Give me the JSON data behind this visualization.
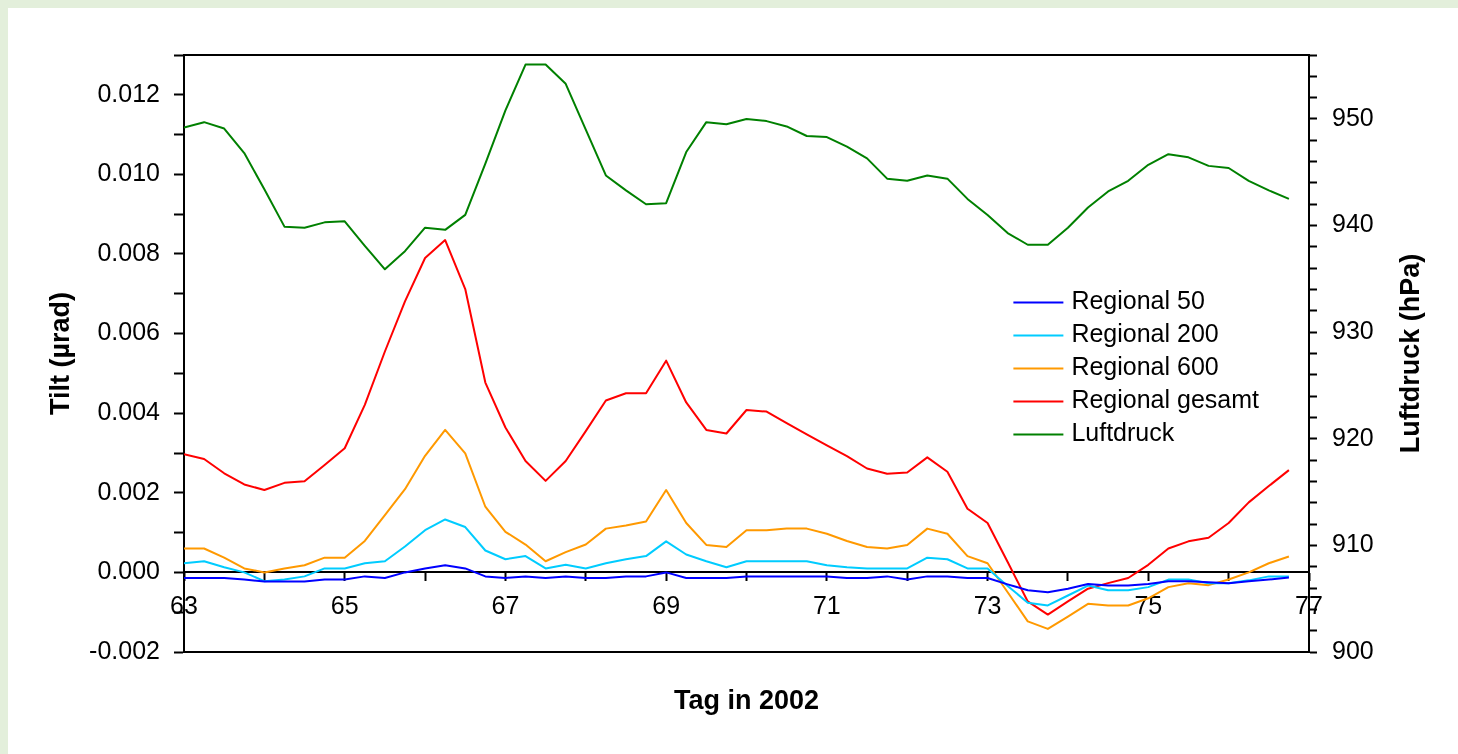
{
  "chart_data": {
    "type": "line",
    "xlabel": "Tag in 2002",
    "ylabel": "Tilt (µrad)",
    "y2label": "Luftdruck (hPa)",
    "x": [
      63,
      63.25,
      63.5,
      63.75,
      64,
      64.25,
      64.5,
      64.75,
      65,
      65.25,
      65.5,
      65.75,
      66,
      66.25,
      66.5,
      66.75,
      67,
      67.25,
      67.5,
      67.75,
      68,
      68.25,
      68.5,
      68.75,
      69,
      69.25,
      69.5,
      69.75,
      70,
      70.25,
      70.5,
      70.75,
      71,
      71.25,
      71.5,
      71.75,
      72,
      72.25,
      72.5,
      72.75,
      73,
      73.25,
      73.5,
      73.75,
      74,
      74.25,
      74.5,
      74.75,
      75,
      75.25,
      75.5,
      75.75,
      76,
      76.25,
      76.5,
      76.75
    ],
    "xlim": [
      63,
      77
    ],
    "xticks": [
      63,
      {
        "value": 64,
        "label": null
      },
      65,
      {
        "value": 66,
        "label": null
      },
      67,
      {
        "value": 68,
        "label": null
      },
      69,
      {
        "value": 70,
        "label": null
      },
      71,
      {
        "value": 72,
        "label": null
      },
      73,
      {
        "value": 74,
        "label": null
      },
      75,
      {
        "value": 76,
        "label": null
      },
      77
    ],
    "ylim": [
      -0.002,
      0.013
    ],
    "yticks": [
      -0.002,
      {
        "value": -0.001,
        "label": null
      },
      {
        "value": 0,
        "label": "0.000"
      },
      {
        "value": 0.001,
        "label": null
      },
      0.002,
      {
        "value": 0.003,
        "label": null
      },
      0.004,
      {
        "value": 0.005,
        "label": null
      },
      0.006,
      {
        "value": 0.007,
        "label": null
      },
      0.008,
      {
        "value": 0.009,
        "label": null
      },
      {
        "value": 0.01,
        "label": "0.010"
      },
      {
        "value": 0.011,
        "label": null
      },
      0.012,
      {
        "value": 0.013,
        "label": null
      }
    ],
    "y2lim": [
      900,
      956
    ],
    "y2ticks": [
      900,
      {
        "value": 902,
        "label": null
      },
      {
        "value": 904,
        "label": null
      },
      {
        "value": 906,
        "label": null
      },
      {
        "value": 908,
        "label": null
      },
      910,
      {
        "value": 912,
        "label": null
      },
      {
        "value": 914,
        "label": null
      },
      {
        "value": 916,
        "label": null
      },
      {
        "value": 918,
        "label": null
      },
      920,
      {
        "value": 922,
        "label": null
      },
      {
        "value": 924,
        "label": null
      },
      {
        "value": 926,
        "label": null
      },
      {
        "value": 928,
        "label": null
      },
      930,
      {
        "value": 932,
        "label": null
      },
      {
        "value": 934,
        "label": null
      },
      {
        "value": 936,
        "label": null
      },
      {
        "value": 938,
        "label": null
      },
      940,
      {
        "value": 942,
        "label": null
      },
      {
        "value": 944,
        "label": null
      },
      {
        "value": 946,
        "label": null
      },
      {
        "value": 948,
        "label": null
      },
      950,
      {
        "value": 952,
        "label": null
      },
      {
        "value": 954,
        "label": null
      },
      {
        "value": 956,
        "label": null
      }
    ],
    "legend": "right",
    "series": [
      {
        "name": "Regional 50",
        "color": "#0000ff",
        "values": [
          -0.00014,
          -0.00014,
          -0.00014,
          -0.00018,
          -0.00023,
          -0.00023,
          -0.00023,
          -0.00018,
          -0.00018,
          -0.0001,
          -0.00014,
          0,
          0.0001,
          0.00018,
          0.0001,
          -0.0001,
          -0.00014,
          -0.0001,
          -0.00014,
          -0.0001,
          -0.00014,
          -0.00014,
          -0.0001,
          -0.0001,
          0,
          -0.00014,
          -0.00014,
          -0.00014,
          -0.0001,
          -0.0001,
          -0.0001,
          -0.0001,
          -0.0001,
          -0.00014,
          -0.00014,
          -0.0001,
          -0.00018,
          -0.0001,
          -0.0001,
          -0.00014,
          -0.00014,
          -0.0003,
          -0.00045,
          -0.0005,
          -0.00041,
          -0.00029,
          -0.00033,
          -0.00033,
          -0.00029,
          -0.00022,
          -0.00022,
          -0.00025,
          -0.00027,
          -0.00022,
          -0.00018,
          -0.00013
        ]
      },
      {
        "name": "Regional 200",
        "color": "#00ccff",
        "values": [
          0.00023,
          0.00028,
          0.00013,
          0,
          -0.00022,
          -0.00018,
          -0.0001,
          0.0001,
          0.0001,
          0.00023,
          0.00028,
          0.00065,
          0.00106,
          0.00133,
          0.00114,
          0.00055,
          0.00033,
          0.00041,
          0.0001,
          0.00019,
          0.0001,
          0.00023,
          0.00033,
          0.00041,
          0.00078,
          0.00045,
          0.00028,
          0.00013,
          0.00028,
          0.00028,
          0.00028,
          0.00028,
          0.00018,
          0.00013,
          0.0001,
          0.0001,
          0.0001,
          0.00037,
          0.00033,
          0.0001,
          0.0001,
          -0.00034,
          -0.00076,
          -0.00083,
          -0.00058,
          -0.00033,
          -0.00045,
          -0.00045,
          -0.00037,
          -0.00018,
          -0.00018,
          -0.00027,
          -0.00027,
          -0.0002,
          -0.0001,
          -0.0001
        ]
      },
      {
        "name": "Regional 600",
        "color": "#ff9900",
        "values": [
          0.0006,
          0.0006,
          0.00037,
          0.0001,
          0,
          0.0001,
          0.00018,
          0.00037,
          0.00037,
          0.00079,
          0.00144,
          0.00209,
          0.00293,
          0.00358,
          0.00299,
          0.00165,
          0.00102,
          0.0007,
          0.00028,
          0.00051,
          0.0007,
          0.0011,
          0.00118,
          0.00128,
          0.00207,
          0.00124,
          0.00069,
          0.00064,
          0.00106,
          0.00106,
          0.0011,
          0.0011,
          0.00097,
          0.00079,
          0.00064,
          0.0006,
          0.00069,
          0.0011,
          0.00097,
          0.00041,
          0.00023,
          -0.0005,
          -0.00123,
          -0.00142,
          -0.00111,
          -0.00079,
          -0.00083,
          -0.00083,
          -0.00065,
          -0.00037,
          -0.00027,
          -0.00032,
          -0.00018,
          0,
          0.00023,
          0.0004
        ]
      },
      {
        "name": "Regional gesamt",
        "color": "#ff0000",
        "values": [
          0.00297,
          0.00285,
          0.00249,
          0.00221,
          0.00207,
          0.00225,
          0.00229,
          0.0027,
          0.00312,
          0.00421,
          0.00555,
          0.00681,
          0.0079,
          0.00835,
          0.00712,
          0.00477,
          0.00364,
          0.0028,
          0.0023,
          0.0028,
          0.00355,
          0.00432,
          0.0045,
          0.0045,
          0.00532,
          0.00427,
          0.00358,
          0.00349,
          0.00408,
          0.00404,
          0.00375,
          0.00347,
          0.00319,
          0.00292,
          0.00261,
          0.00248,
          0.00251,
          0.00289,
          0.00253,
          0.0016,
          0.00124,
          0.00026,
          -0.00073,
          -0.00106,
          -0.00073,
          -0.00041,
          -0.00027,
          -0.00014,
          0.00019,
          0.0006,
          0.00078,
          0.00087,
          0.00124,
          0.00176,
          0.00217,
          0.00257
        ]
      },
      {
        "name": "Luftdruck",
        "color": "#008000",
        "axis": "y2",
        "values": [
          949.2,
          949.7,
          949.1,
          946.8,
          943.4,
          939.9,
          939.8,
          940.3,
          940.4,
          938.1,
          935.9,
          937.6,
          939.8,
          939.6,
          941.0,
          945.8,
          950.8,
          955.1,
          955.1,
          953.3,
          949.0,
          944.7,
          943.3,
          942.0,
          942.1,
          946.9,
          949.7,
          949.5,
          950.0,
          949.8,
          949.3,
          948.4,
          948.3,
          947.4,
          946.3,
          944.4,
          944.2,
          944.7,
          944.4,
          942.5,
          941.0,
          939.3,
          938.2,
          938.2,
          939.8,
          941.7,
          943.2,
          944.2,
          945.7,
          946.7,
          946.4,
          945.6,
          945.4,
          944.2,
          943.3,
          942.5
        ]
      }
    ]
  }
}
